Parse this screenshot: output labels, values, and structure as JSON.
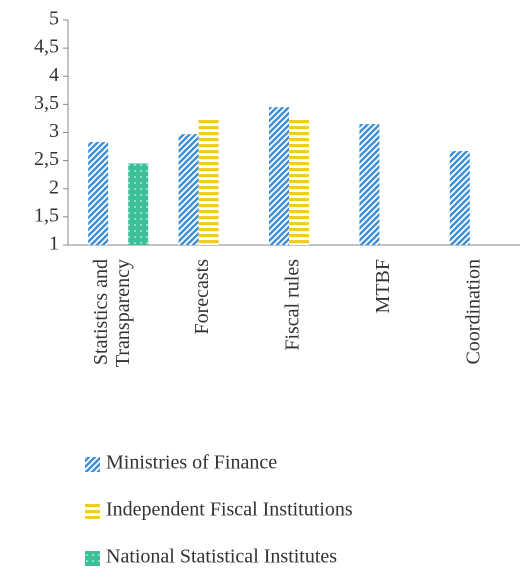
{
  "chart_data": {
    "type": "bar",
    "categories": [
      "Statistics and Transparency",
      "Forecasts",
      "Fiscal rules",
      "MTBF",
      "Coordination"
    ],
    "series": [
      {
        "name": "Ministries of Finance",
        "color": "#3d8fd6",
        "values": [
          2.83,
          2.97,
          3.45,
          3.15,
          2.67
        ]
      },
      {
        "name": "Independent Fiscal Institutions",
        "color": "#f2cc1e",
        "values": [
          null,
          3.25,
          3.25,
          null,
          null
        ]
      },
      {
        "name": "National Statistical Institutes",
        "color": "#3dbf9a",
        "values": [
          2.45,
          null,
          null,
          null,
          null
        ]
      }
    ],
    "ylim": [
      1,
      5
    ],
    "yticks": [
      1,
      {
        "value": 1.5,
        "label": "1,5"
      },
      2,
      {
        "value": 2.5,
        "label": "2,5"
      },
      3,
      {
        "value": 3.5,
        "label": "3,5"
      },
      4,
      {
        "value": 4.5,
        "label": "4,5"
      },
      5
    ],
    "grid": false,
    "legend": "bottom"
  }
}
